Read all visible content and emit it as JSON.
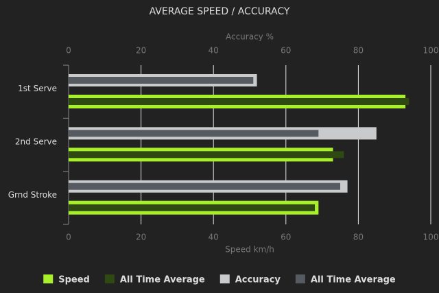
{
  "chart_data": {
    "type": "bar",
    "orientation": "horizontal",
    "title": "AVERAGE SPEED / ACCURACY",
    "categories": [
      "1st Serve",
      "2nd Serve",
      "Grnd Stroke"
    ],
    "x_label": "Speed km/h",
    "xlim": [
      0,
      100
    ],
    "xticks": [
      0,
      20,
      40,
      60,
      80,
      100
    ],
    "x2_label": "Accuracy %",
    "x2lim": [
      0,
      100
    ],
    "x2ticks": [
      0,
      20,
      40,
      60,
      80,
      100
    ],
    "grid": true,
    "legend": "bottom",
    "series": [
      {
        "name": "Speed",
        "color": "#a8f02a",
        "axis": "x",
        "values": [
          93,
          73,
          69
        ]
      },
      {
        "name": "All Time Average",
        "color": "#2e4a12",
        "axis": "x",
        "values": [
          94,
          76,
          68
        ]
      },
      {
        "name": "Accuracy",
        "color": "#c9cacb",
        "axis": "x2",
        "values": [
          52,
          85,
          77
        ]
      },
      {
        "name": "All Time Average",
        "color": "#565b61",
        "axis": "x2",
        "values": [
          51,
          69,
          75
        ]
      }
    ]
  }
}
